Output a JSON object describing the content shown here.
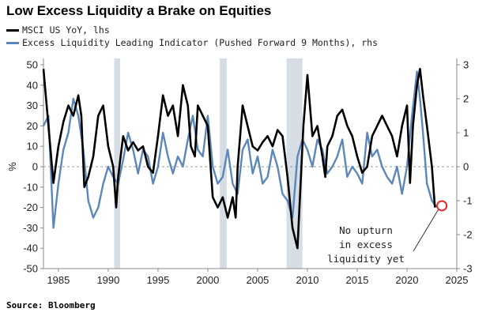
{
  "chart_data": {
    "type": "line",
    "title": "Low Excess Liquidity a Brake on Equities",
    "source": "Source: Bloomberg",
    "ylabel_left": "%",
    "ylim_left": [
      -50,
      50
    ],
    "yticks_left": [
      50,
      40,
      30,
      20,
      10,
      0,
      -10,
      -20,
      -30,
      -40,
      -50
    ],
    "ylim_right": [
      -3,
      3
    ],
    "yticks_right": [
      3,
      2,
      1,
      0,
      -1,
      -2,
      -3
    ],
    "xlim": [
      1983.5,
      2025
    ],
    "xticks": [
      1985,
      1990,
      1995,
      2000,
      2005,
      2010,
      2015,
      2020,
      2025
    ],
    "recessions": [
      [
        1990.6,
        1991.2
      ],
      [
        2001.2,
        2001.9
      ],
      [
        2007.9,
        2009.5
      ]
    ],
    "annotation": {
      "lines": [
        "No upturn",
        "in excess",
        "liquidity yet"
      ],
      "target": [
        2023.5,
        -1.15
      ]
    },
    "grid": false,
    "legend_placement": "top-left",
    "series": [
      {
        "name": "MSCI US YoY, lhs",
        "axis": "left",
        "color": "#000000",
        "x": [
          1983.5,
          1984.0,
          1984.5,
          1985.0,
          1985.5,
          1986.0,
          1986.5,
          1987.0,
          1987.3,
          1987.6,
          1988.0,
          1988.5,
          1989.0,
          1989.5,
          1990.0,
          1990.5,
          1990.8,
          1991.0,
          1991.5,
          1992.0,
          1992.5,
          1993.0,
          1993.5,
          1994.0,
          1994.5,
          1995.0,
          1995.5,
          1996.0,
          1996.5,
          1997.0,
          1997.5,
          1998.0,
          1998.3,
          1998.7,
          1999.0,
          1999.5,
          2000.0,
          2000.5,
          2001.0,
          2001.5,
          2002.0,
          2002.5,
          2002.8,
          2003.0,
          2003.5,
          2004.0,
          2004.5,
          2005.0,
          2005.5,
          2006.0,
          2006.5,
          2007.0,
          2007.5,
          2008.0,
          2008.5,
          2009.0,
          2009.2,
          2009.6,
          2010.0,
          2010.5,
          2011.0,
          2011.5,
          2011.8,
          2012.0,
          2012.5,
          2013.0,
          2013.5,
          2014.0,
          2014.5,
          2015.0,
          2015.5,
          2016.0,
          2016.5,
          2017.0,
          2017.5,
          2018.0,
          2018.5,
          2019.0,
          2019.5,
          2020.0,
          2020.3,
          2020.6,
          2021.0,
          2021.3,
          2021.6,
          2022.0,
          2022.5,
          2022.8
        ],
        "values": [
          48,
          20,
          -8,
          10,
          22,
          30,
          25,
          35,
          25,
          -10,
          -5,
          5,
          25,
          30,
          10,
          0,
          -20,
          -5,
          15,
          8,
          12,
          8,
          10,
          0,
          -3,
          15,
          35,
          25,
          30,
          15,
          40,
          30,
          10,
          5,
          30,
          25,
          20,
          -15,
          -20,
          -15,
          -25,
          -15,
          -25,
          0,
          30,
          20,
          10,
          8,
          12,
          15,
          10,
          18,
          15,
          -5,
          -30,
          -40,
          -20,
          20,
          45,
          15,
          20,
          5,
          -5,
          10,
          15,
          25,
          28,
          20,
          15,
          5,
          -3,
          0,
          15,
          20,
          25,
          20,
          15,
          5,
          20,
          30,
          -8,
          20,
          40,
          48,
          35,
          20,
          0,
          -20
        ]
      },
      {
        "name": "Excess Liquidity Leading Indicator (Pushed Forward 9 Months), rhs",
        "axis": "right",
        "color": "#5b87bb",
        "x": [
          1983.5,
          1984.0,
          1984.5,
          1985.0,
          1985.5,
          1986.0,
          1986.5,
          1987.0,
          1987.5,
          1988.0,
          1988.5,
          1989.0,
          1989.5,
          1990.0,
          1990.5,
          1991.0,
          1991.5,
          1992.0,
          1992.5,
          1993.0,
          1993.5,
          1994.0,
          1994.5,
          1995.0,
          1995.5,
          1996.0,
          1996.5,
          1997.0,
          1997.5,
          1998.0,
          1998.5,
          1999.0,
          1999.5,
          2000.0,
          2000.5,
          2001.0,
          2001.5,
          2002.0,
          2002.5,
          2003.0,
          2003.5,
          2004.0,
          2004.5,
          2005.0,
          2005.5,
          2006.0,
          2006.5,
          2007.0,
          2007.5,
          2008.0,
          2008.5,
          2009.0,
          2009.5,
          2010.0,
          2010.5,
          2011.0,
          2011.5,
          2012.0,
          2012.5,
          2013.0,
          2013.5,
          2014.0,
          2014.5,
          2015.0,
          2015.5,
          2016.0,
          2016.5,
          2017.0,
          2017.5,
          2018.0,
          2018.5,
          2019.0,
          2019.5,
          2020.0,
          2020.5,
          2021.0,
          2021.3,
          2021.6,
          2022.0,
          2022.5,
          2023.0
        ],
        "values": [
          1.2,
          1.5,
          -1.8,
          -0.5,
          0.5,
          1.0,
          2.0,
          1.5,
          0.5,
          -1.0,
          -1.5,
          -1.2,
          -0.5,
          0.0,
          -0.3,
          -0.5,
          0.2,
          1.0,
          0.5,
          -0.2,
          0.5,
          0.3,
          -0.5,
          0.0,
          1.0,
          0.3,
          -0.2,
          0.3,
          0.0,
          0.8,
          1.5,
          0.5,
          0.3,
          1.5,
          0.0,
          -0.5,
          -0.3,
          0.5,
          -0.5,
          -0.8,
          0.5,
          0.8,
          -0.2,
          0.3,
          -0.5,
          -0.3,
          0.5,
          0.0,
          -0.8,
          -1.0,
          -1.5,
          0.3,
          0.8,
          0.5,
          0.0,
          0.8,
          0.5,
          -0.2,
          0.0,
          0.3,
          0.8,
          -0.3,
          0.0,
          -0.2,
          -0.5,
          1.0,
          0.3,
          0.5,
          0.0,
          -0.3,
          -0.5,
          0.0,
          -0.8,
          0.0,
          1.5,
          2.8,
          2.0,
          1.0,
          -0.5,
          -1.0,
          -1.2
        ]
      }
    ]
  }
}
